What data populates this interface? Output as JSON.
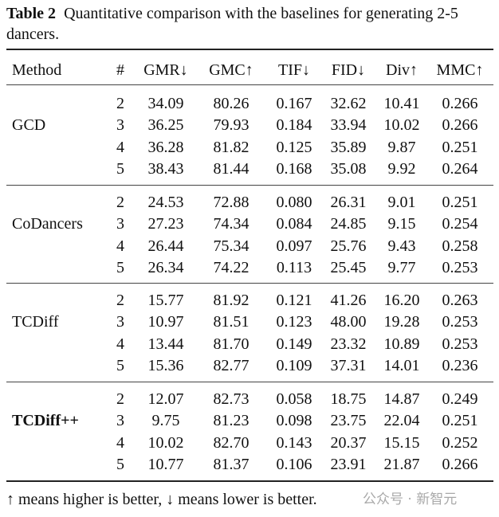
{
  "caption": {
    "label": "Table 2",
    "text": "Quantitative comparison with the baselines for generating 2-5 dancers."
  },
  "table": {
    "headers": [
      "Method",
      "#",
      "GMR↓",
      "GMC↑",
      "TIF↓",
      "FID↓",
      "Div↑",
      "MMC↑"
    ],
    "groups": [
      {
        "method": "GCD",
        "bold": false,
        "rows": [
          [
            "2",
            "34.09",
            "80.26",
            "0.167",
            "32.62",
            "10.41",
            "0.266"
          ],
          [
            "3",
            "36.25",
            "79.93",
            "0.184",
            "33.94",
            "10.02",
            "0.266"
          ],
          [
            "4",
            "36.28",
            "81.82",
            "0.125",
            "35.89",
            "9.87",
            "0.251"
          ],
          [
            "5",
            "38.43",
            "81.44",
            "0.168",
            "35.08",
            "9.92",
            "0.264"
          ]
        ]
      },
      {
        "method": "CoDancers",
        "bold": false,
        "rows": [
          [
            "2",
            "24.53",
            "72.88",
            "0.080",
            "26.31",
            "9.01",
            "0.251"
          ],
          [
            "3",
            "27.23",
            "74.34",
            "0.084",
            "24.85",
            "9.15",
            "0.254"
          ],
          [
            "4",
            "26.44",
            "75.34",
            "0.097",
            "25.76",
            "9.43",
            "0.258"
          ],
          [
            "5",
            "26.34",
            "74.22",
            "0.113",
            "25.45",
            "9.77",
            "0.253"
          ]
        ]
      },
      {
        "method": "TCDiff",
        "bold": false,
        "rows": [
          [
            "2",
            "15.77",
            "81.92",
            "0.121",
            "41.26",
            "16.20",
            "0.263"
          ],
          [
            "3",
            "10.97",
            "81.51",
            "0.123",
            "48.00",
            "19.28",
            "0.253"
          ],
          [
            "4",
            "13.44",
            "81.70",
            "0.149",
            "23.32",
            "10.89",
            "0.253"
          ],
          [
            "5",
            "15.36",
            "82.77",
            "0.109",
            "37.31",
            "14.01",
            "0.236"
          ]
        ]
      },
      {
        "method": "TCDiff++",
        "bold": true,
        "rows": [
          [
            "2",
            "12.07",
            "82.73",
            "0.058",
            "18.75",
            "14.87",
            "0.249"
          ],
          [
            "3",
            "9.75",
            "81.23",
            "0.098",
            "23.75",
            "22.04",
            "0.251"
          ],
          [
            "4",
            "10.02",
            "82.70",
            "0.143",
            "20.37",
            "15.15",
            "0.252"
          ],
          [
            "5",
            "10.77",
            "81.37",
            "0.106",
            "23.91",
            "21.87",
            "0.266"
          ]
        ]
      }
    ]
  },
  "footnote": "↑ means higher is better, ↓ means lower is better.",
  "watermark": "公众号 · 新智元"
}
